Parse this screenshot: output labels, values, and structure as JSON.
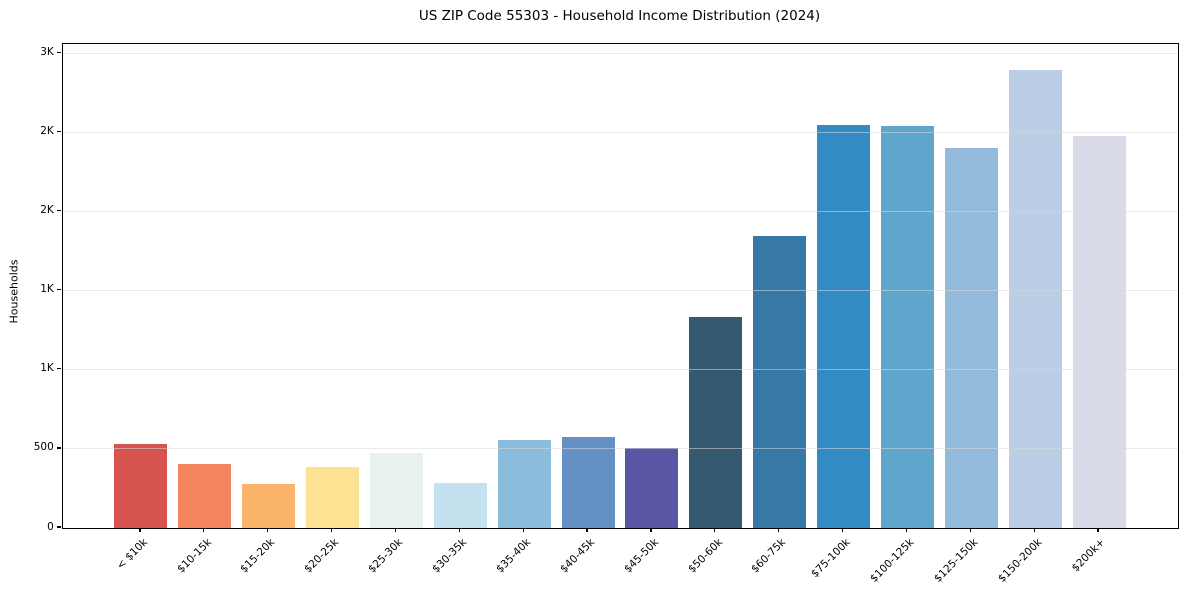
{
  "title": "US ZIP Code 55303 - Household Income Distribution (2024)",
  "chart_data": {
    "type": "bar",
    "title": "US ZIP Code 55303 - Household Income Distribution (2024)",
    "xlabel": "",
    "ylabel": "Households",
    "categories": [
      "< $10k",
      "$10-15k",
      "$15-20k",
      "$20-25k",
      "$25-30k",
      "$30-35k",
      "$35-40k",
      "$40-45k",
      "$45-50k",
      "$50-60k",
      "$60-75k",
      "$75-100k",
      "$100-125k",
      "$125-150k",
      "$150-200k",
      "$200k+"
    ],
    "values": [
      530,
      405,
      280,
      385,
      475,
      285,
      555,
      575,
      505,
      1335,
      1845,
      2550,
      2540,
      2405,
      2895,
      2480
    ],
    "bar_colors": [
      "#d6534f",
      "#f4865f",
      "#f9b469",
      "#fde294",
      "#e8f1ee",
      "#c3e1ee",
      "#8bbcdc",
      "#6590c3",
      "#5956a6",
      "#355a70",
      "#3779a6",
      "#338bc3",
      "#60a6cc",
      "#94badb",
      "#bccee6",
      "#d9dbe9"
    ],
    "ylim": [
      0,
      3060
    ],
    "yticks": [
      {
        "value": 0,
        "label": "0"
      },
      {
        "value": 500,
        "label": "500"
      },
      {
        "value": 1000,
        "label": "1K"
      },
      {
        "value": 1500,
        "label": "1K"
      },
      {
        "value": 2000,
        "label": "2K"
      },
      {
        "value": 2500,
        "label": "2K"
      },
      {
        "value": 3000,
        "label": "3K"
      }
    ],
    "grid": "horizontal",
    "gridline_color": "#d9d9d9",
    "axis_color": "#000000",
    "background": "#ffffff",
    "legend": "none"
  }
}
